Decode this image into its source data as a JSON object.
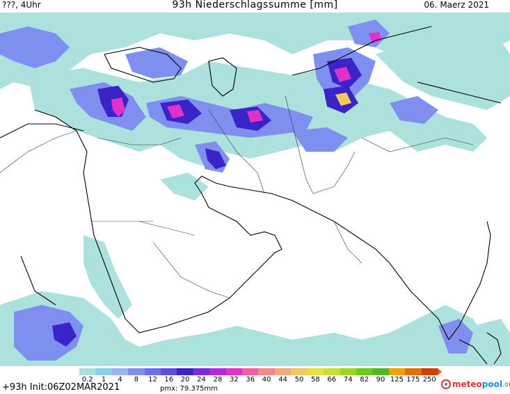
{
  "header": {
    "left_label": "???, 4Uhr",
    "title": "93h Niederschlagssumme [mm]",
    "date": "06. Maerz 2021"
  },
  "legend": {
    "ticks": [
      "0.2",
      "1",
      "4",
      "8",
      "12",
      "16",
      "20",
      "24",
      "28",
      "32",
      "36",
      "40",
      "44",
      "50",
      "58",
      "66",
      "74",
      "82",
      "90",
      "125",
      "175",
      "250"
    ],
    "colors": [
      "#a8e0dc",
      "#8fd0e8",
      "#9ab4f0",
      "#7f8ff0",
      "#6a6ef0",
      "#5a4ee6",
      "#3a24c8",
      "#7a2ae0",
      "#b22adf",
      "#e032c8",
      "#f060a0",
      "#f58888",
      "#f7a878",
      "#f5c860",
      "#e8e040",
      "#c8e030",
      "#98d820",
      "#70c818",
      "#50b81c",
      "#f0a000",
      "#e07000",
      "#d04000"
    ]
  },
  "footer": {
    "init_label": "+93h Init:06Z02MAR2021",
    "pmx_label": "pmx: 79.375mm",
    "brand_part1": "meteo",
    "brand_part2": "pool",
    "brand_part3": ".org"
  },
  "colors": {
    "land_outline": "#000000",
    "light_precip": "#a8e0dc",
    "medium_precip": "#7f8ff0",
    "heavy_precip": "#3a24c8",
    "extreme_precip": "#e032c8"
  }
}
